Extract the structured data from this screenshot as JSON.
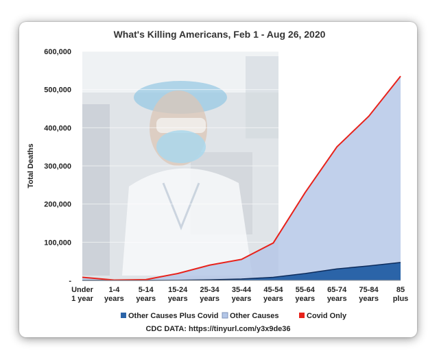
{
  "chart_data": {
    "type": "area",
    "title": "What's Killing Americans, Feb 1 - Aug 26, 2020",
    "xlabel": "",
    "ylabel": "Total Deaths",
    "ylim": [
      0,
      600000
    ],
    "y_ticks": [
      "-",
      "100,000",
      "200,000",
      "300,000",
      "400,000",
      "500,000",
      "600,000"
    ],
    "categories": [
      [
        "Under",
        "1 year"
      ],
      [
        "1-4",
        "years"
      ],
      [
        "5-14",
        "years"
      ],
      [
        "15-24",
        "years"
      ],
      [
        "25-34",
        "years"
      ],
      [
        "35-44",
        "years"
      ],
      [
        "45-54",
        "years"
      ],
      [
        "55-64",
        "years"
      ],
      [
        "65-74",
        "years"
      ],
      [
        "75-84",
        "years"
      ],
      [
        "85",
        "plus"
      ]
    ],
    "series": [
      {
        "name": "Other Causes Plus Covid",
        "kind": "area",
        "color": "#2b64a8",
        "values": [
          0,
          0,
          0,
          500,
          1500,
          3500,
          8000,
          18000,
          30000,
          38000,
          47000
        ]
      },
      {
        "name": "Other Causes",
        "kind": "area",
        "color": "#b3c6e7",
        "values": [
          8000,
          1000,
          2000,
          18000,
          40000,
          55000,
          98000,
          230000,
          350000,
          430000,
          535000
        ]
      },
      {
        "name": "Covid Only",
        "kind": "line",
        "color": "#e8221b",
        "values": [
          8000,
          1000,
          2000,
          18000,
          40000,
          55000,
          98000,
          230000,
          350000,
          430000,
          535000
        ]
      }
    ],
    "grid": true,
    "legend_position": "bottom",
    "source": "CDC DATA: https://tinyurl.com/y3x9de36"
  }
}
